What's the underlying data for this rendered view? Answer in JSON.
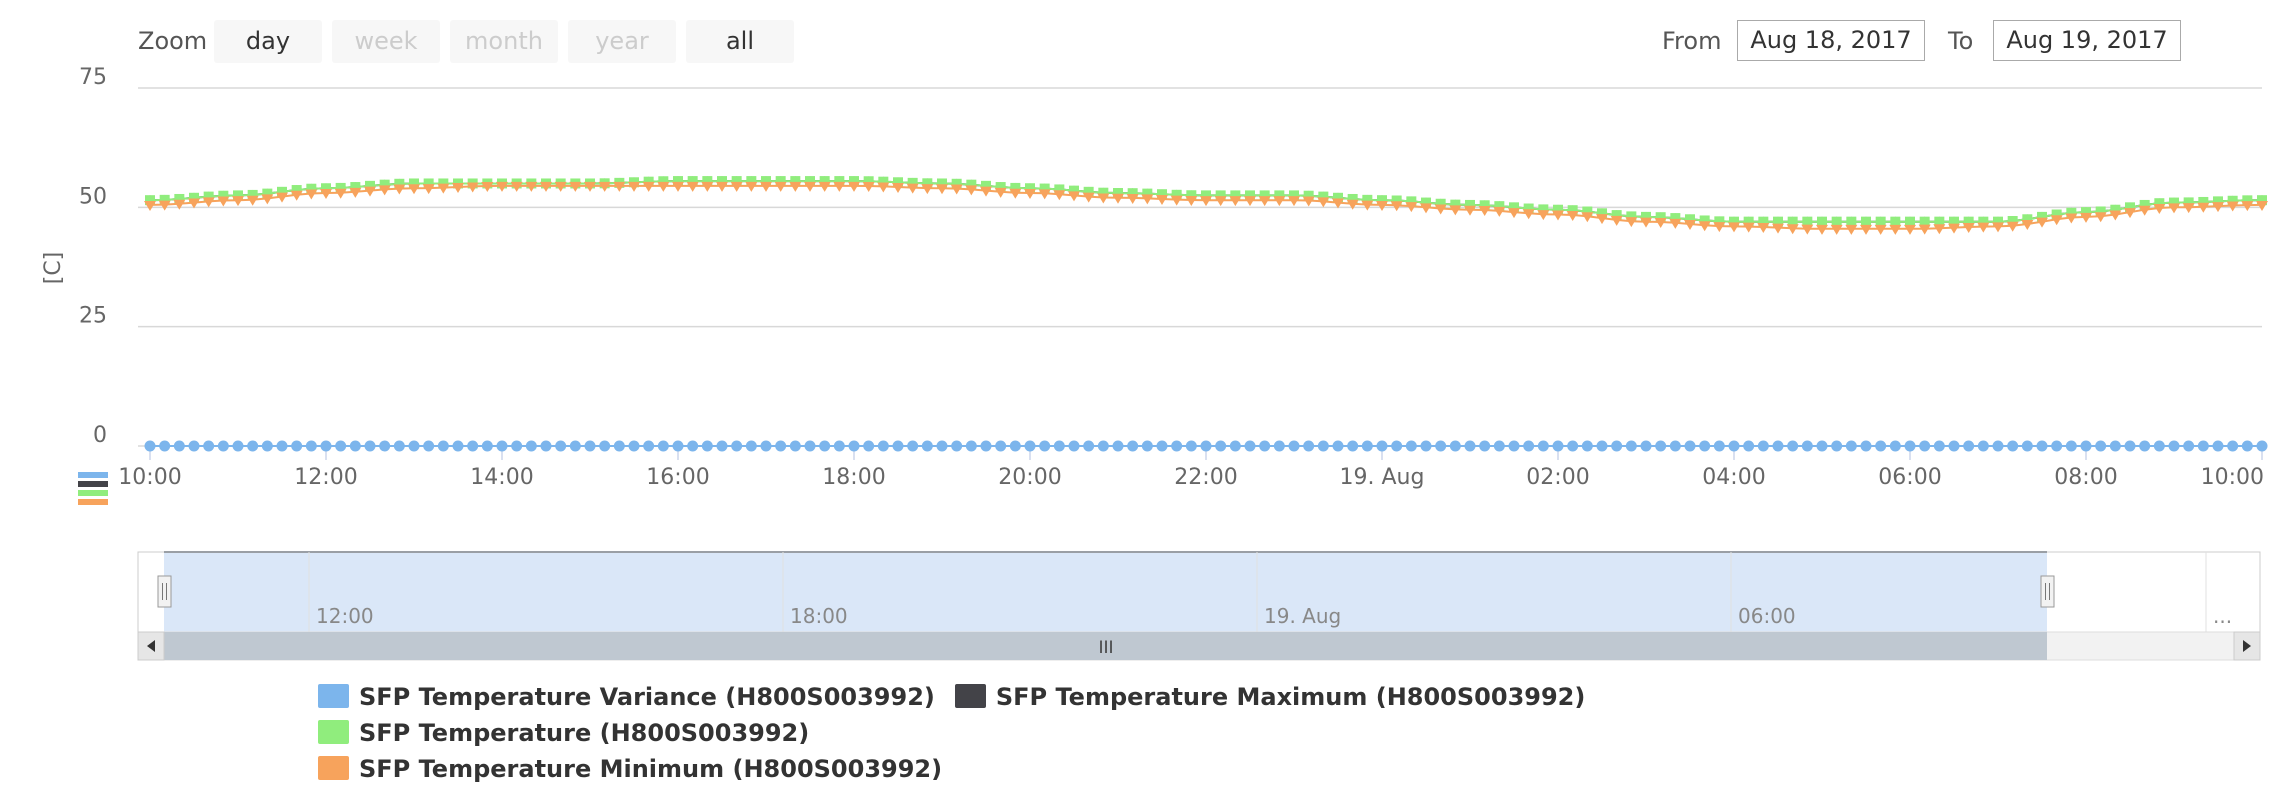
{
  "toolbar": {
    "zoom_label": "Zoom",
    "zoom_buttons": [
      {
        "label": "day",
        "enabled": true
      },
      {
        "label": "week",
        "enabled": false
      },
      {
        "label": "month",
        "enabled": false
      },
      {
        "label": "year",
        "enabled": false
      },
      {
        "label": "all",
        "enabled": true
      }
    ],
    "from_label": "From",
    "from_value": "Aug 18, 2017",
    "to_label": "To",
    "to_value": "Aug 19, 2017"
  },
  "navigator": {
    "tick_labels": [
      "12:00",
      "18:00",
      "19. Aug",
      "06:00",
      "..."
    ],
    "scrollbar_grip": "III"
  },
  "chart_data": {
    "type": "line",
    "title": "",
    "xlabel": "",
    "ylabel": "[C]",
    "ylim": [
      0,
      75
    ],
    "y_ticks": [
      "75",
      "50",
      "25",
      "0"
    ],
    "x_range": [
      "2017-08-18 10:00",
      "2017-08-19 10:00"
    ],
    "x_ticks": [
      "10:00",
      "12:00",
      "14:00",
      "16:00",
      "18:00",
      "20:00",
      "22:00",
      "19. Aug",
      "02:00",
      "04:00",
      "06:00",
      "08:00",
      "10:00"
    ],
    "x": [
      "2017-08-18 10:00",
      "2017-08-18 11:00",
      "2017-08-18 12:00",
      "2017-08-18 13:00",
      "2017-08-18 14:00",
      "2017-08-18 15:00",
      "2017-08-18 16:00",
      "2017-08-18 17:00",
      "2017-08-18 18:00",
      "2017-08-18 19:00",
      "2017-08-18 20:00",
      "2017-08-18 21:00",
      "2017-08-18 22:00",
      "2017-08-18 23:00",
      "2017-08-19 00:00",
      "2017-08-19 01:00",
      "2017-08-19 02:00",
      "2017-08-19 03:00",
      "2017-08-19 04:00",
      "2017-08-19 05:00",
      "2017-08-19 06:00",
      "2017-08-19 07:00",
      "2017-08-19 08:00",
      "2017-08-19 09:00",
      "2017-08-19 10:00"
    ],
    "grid": true,
    "legend": "bottom",
    "series": [
      {
        "name": "SFP Temperature Variance (H800S003992)",
        "color": "#7cb5ec",
        "marker": "circle",
        "values": [
          0,
          0,
          0,
          0,
          0,
          0,
          0,
          0,
          0,
          0,
          0,
          0,
          0,
          0,
          0,
          0,
          0,
          0,
          0,
          0,
          0,
          0,
          0,
          0,
          0
        ]
      },
      {
        "name": "SFP Temperature Maximum (H800S003992)",
        "color": "#434348",
        "marker": "diamond",
        "values": [
          51.5,
          52.5,
          54,
          55,
          55,
          55,
          55.5,
          55.5,
          55.5,
          55,
          54,
          53,
          52.5,
          52.5,
          51.5,
          50.5,
          49.5,
          48,
          47,
          47,
          47,
          47,
          49,
          51,
          51.5
        ]
      },
      {
        "name": "SFP Temperature (H800S003992)",
        "color": "#90ed7d",
        "marker": "square",
        "values": [
          51.5,
          52.5,
          54,
          55,
          55,
          55,
          55.5,
          55.5,
          55.5,
          55,
          54,
          53,
          52.5,
          52.5,
          51.5,
          50.5,
          49.5,
          48,
          47,
          47,
          47,
          47,
          49,
          51,
          51.5
        ]
      },
      {
        "name": "SFP Temperature Minimum (H800S003992)",
        "color": "#f7a35c",
        "marker": "triangle-down",
        "values": [
          50.5,
          51.5,
          53,
          54,
          54.5,
          54.5,
          54.5,
          54.5,
          54.5,
          54,
          53,
          52,
          51.5,
          51.5,
          50.5,
          49.5,
          48.5,
          47,
          46,
          45.5,
          45.5,
          46,
          48,
          50,
          50.5
        ]
      }
    ]
  }
}
